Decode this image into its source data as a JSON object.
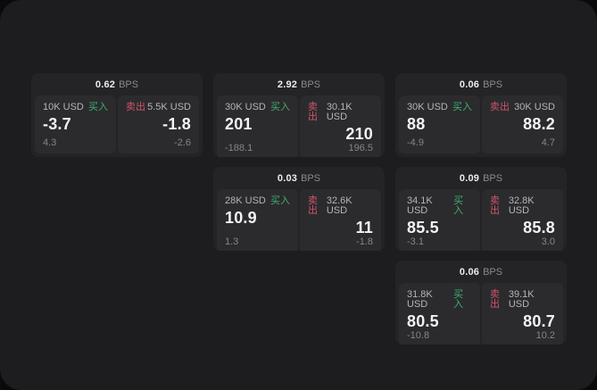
{
  "labels": {
    "bps_unit": "BPS",
    "buy": "买入",
    "sell": "卖出"
  },
  "colors": {
    "buy_green": "#3fae73",
    "sell_red": "#d1536a",
    "panel_background": "#1d1d1f",
    "card_background": "#242426",
    "tile_background": "#2b2b2d"
  },
  "cards": [
    {
      "bps": "0.62",
      "col": 1,
      "row": 1,
      "buy": {
        "size": "10K USD",
        "price": "-3.7",
        "delta": "4.3"
      },
      "sell": {
        "size": "5.5K USD",
        "price": "-1.8",
        "delta": "-2.6"
      }
    },
    {
      "bps": "2.92",
      "col": 2,
      "row": 1,
      "buy": {
        "size": "30K USD",
        "price": "201",
        "delta": "-188.1"
      },
      "sell": {
        "size": "30.1K USD",
        "price": "210",
        "delta": "196.5"
      }
    },
    {
      "bps": "0.06",
      "col": 3,
      "row": 1,
      "buy": {
        "size": "30K USD",
        "price": "88",
        "delta": "-4.9"
      },
      "sell": {
        "size": "30K USD",
        "price": "88.2",
        "delta": "4.7"
      }
    },
    {
      "bps": "0.03",
      "col": 2,
      "row": 2,
      "buy": {
        "size": "28K USD",
        "price": "10.9",
        "delta": "1.3"
      },
      "sell": {
        "size": "32.6K USD",
        "price": "11",
        "delta": "-1.8"
      }
    },
    {
      "bps": "0.09",
      "col": 3,
      "row": 2,
      "buy": {
        "size": "34.1K USD",
        "price": "85.5",
        "delta": "-3.1"
      },
      "sell": {
        "size": "32.8K USD",
        "price": "85.8",
        "delta": "3.0"
      }
    },
    {
      "bps": "0.06",
      "col": 3,
      "row": 3,
      "buy": {
        "size": "31.8K USD",
        "price": "80.5",
        "delta": "-10.8"
      },
      "sell": {
        "size": "39.1K USD",
        "price": "80.7",
        "delta": "10.2"
      }
    }
  ]
}
